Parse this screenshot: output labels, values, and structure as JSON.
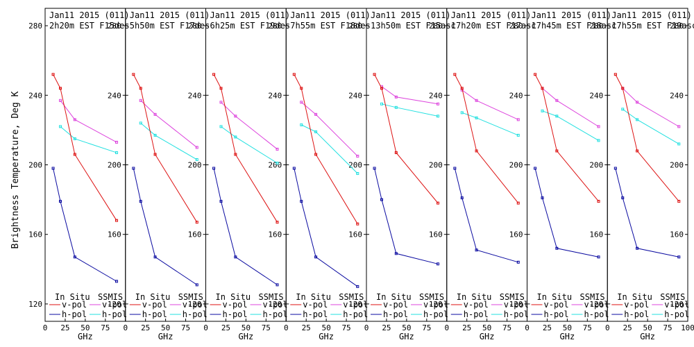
{
  "chart_data": {
    "type": "line",
    "ylabel": "Brightness Temperature, Deg K",
    "xlabel": "GHz",
    "ylim": [
      110,
      290
    ],
    "xlim": [
      0,
      100
    ],
    "yticks": [
      120,
      160,
      200,
      240,
      280
    ],
    "xticks": [
      0,
      25,
      50,
      75
    ],
    "xtick_labels_last_panel": [
      0,
      25,
      50,
      75,
      100
    ],
    "legend": {
      "insitu_label": "In Situ",
      "ssmis_label": "SSMIS",
      "vpol_label": "v-pol",
      "hpol_label": "h-pol"
    },
    "colors": {
      "insitu_v": "#dd1111",
      "insitu_h": "#0a0aa0",
      "ssmis_v": "#dd44dd",
      "ssmis_h": "#22e0e0",
      "axis": "#000000"
    },
    "insitu_freqs": [
      10,
      19,
      37,
      89
    ],
    "ssmis_freqs": [
      19,
      37,
      89
    ],
    "panels": [
      {
        "title1": "Jan11 2015 (011)",
        "title2": "2h20m EST F15des",
        "insitu_v": [
          252,
          244,
          206,
          168
        ],
        "insitu_h": [
          198,
          179,
          147,
          133
        ],
        "ssmis_v": [
          237,
          226,
          213
        ],
        "ssmis_h": [
          222,
          215,
          207
        ]
      },
      {
        "title1": "Jan11 2015 (011)",
        "title2": "5h50m EST F17des",
        "insitu_v": [
          252,
          244,
          206,
          167
        ],
        "insitu_h": [
          198,
          179,
          147,
          131
        ],
        "ssmis_v": [
          237,
          229,
          210
        ],
        "ssmis_h": [
          224,
          217,
          203
        ]
      },
      {
        "title1": "Jan11 2015 (011)",
        "title2": "6h25m EST F19des",
        "insitu_v": [
          252,
          244,
          206,
          167
        ],
        "insitu_h": [
          198,
          179,
          147,
          131
        ],
        "ssmis_v": [
          236,
          228,
          209
        ],
        "ssmis_h": [
          222,
          216,
          201
        ]
      },
      {
        "title1": "Jan11 2015 (011)",
        "title2": "7h55m EST F18des",
        "insitu_v": [
          252,
          244,
          206,
          166
        ],
        "insitu_h": [
          198,
          179,
          147,
          130
        ],
        "ssmis_v": [
          236,
          229,
          205
        ],
        "ssmis_h": [
          223,
          219,
          195
        ]
      },
      {
        "title1": "Jan11 2015 (011)",
        "title2": "13h50m EST F15asc",
        "insitu_v": [
          252,
          244,
          207,
          178
        ],
        "insitu_h": [
          198,
          180,
          149,
          143
        ],
        "ssmis_v": [
          245,
          239,
          235
        ],
        "ssmis_h": [
          235,
          233,
          228
        ]
      },
      {
        "title1": "Jan11 2015 (011)",
        "title2": "17h20m EST F17asc",
        "insitu_v": [
          252,
          244,
          208,
          178
        ],
        "insitu_h": [
          198,
          181,
          151,
          144
        ],
        "ssmis_v": [
          243,
          237,
          226
        ],
        "ssmis_h": [
          230,
          227,
          217
        ]
      },
      {
        "title1": "Jan11 2015 (011)",
        "title2": "17h45m EST F18asc",
        "insitu_v": [
          252,
          244,
          208,
          179
        ],
        "insitu_h": [
          198,
          181,
          152,
          147
        ],
        "ssmis_v": [
          244,
          237,
          222
        ],
        "ssmis_h": [
          231,
          228,
          214
        ]
      },
      {
        "title1": "Jan11 2015 (011)",
        "title2": "17h55m EST F19asc",
        "insitu_v": [
          252,
          244,
          208,
          179
        ],
        "insitu_h": [
          198,
          181,
          152,
          147
        ],
        "ssmis_v": [
          244,
          236,
          222
        ],
        "ssmis_h": [
          232,
          226,
          212
        ]
      }
    ]
  }
}
